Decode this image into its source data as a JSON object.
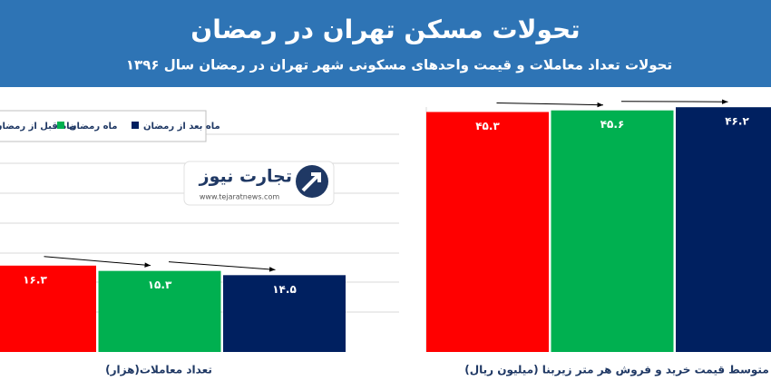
{
  "chart_data": {
    "type": "bar",
    "title": "تحولات مسکن تهران در رمضان",
    "subtitle": "تحولات تعداد معاملات و قیمت واحدهای مسکونی شهر تهران در رمضان سال ۱۳۹۶",
    "categories": [
      "تعداد معاملات(هزار)",
      "متوسط قیمت خرید و فروش هر متر زیربنا (میلیون ریال)"
    ],
    "series": [
      {
        "name": "ماه قبل از رمضان",
        "color": "#ff0000",
        "values": [
          16.3,
          45.3
        ],
        "value_labels": [
          "۱۶.۳",
          "۴۵.۳"
        ]
      },
      {
        "name": "ماه رمضان",
        "color": "#00b050",
        "values": [
          15.3,
          45.6
        ],
        "value_labels": [
          "۱۵.۳",
          "۴۵.۶"
        ]
      },
      {
        "name": "ماه بعد از رمضان",
        "color": "#002060",
        "values": [
          14.5,
          46.2
        ],
        "value_labels": [
          "۱۴.۵",
          "۴۶.۲"
        ]
      }
    ],
    "ylim": [
      0,
      50
    ]
  },
  "logo": {
    "name": "تجارت نیوز",
    "url": "www.tejaratnews.com"
  }
}
